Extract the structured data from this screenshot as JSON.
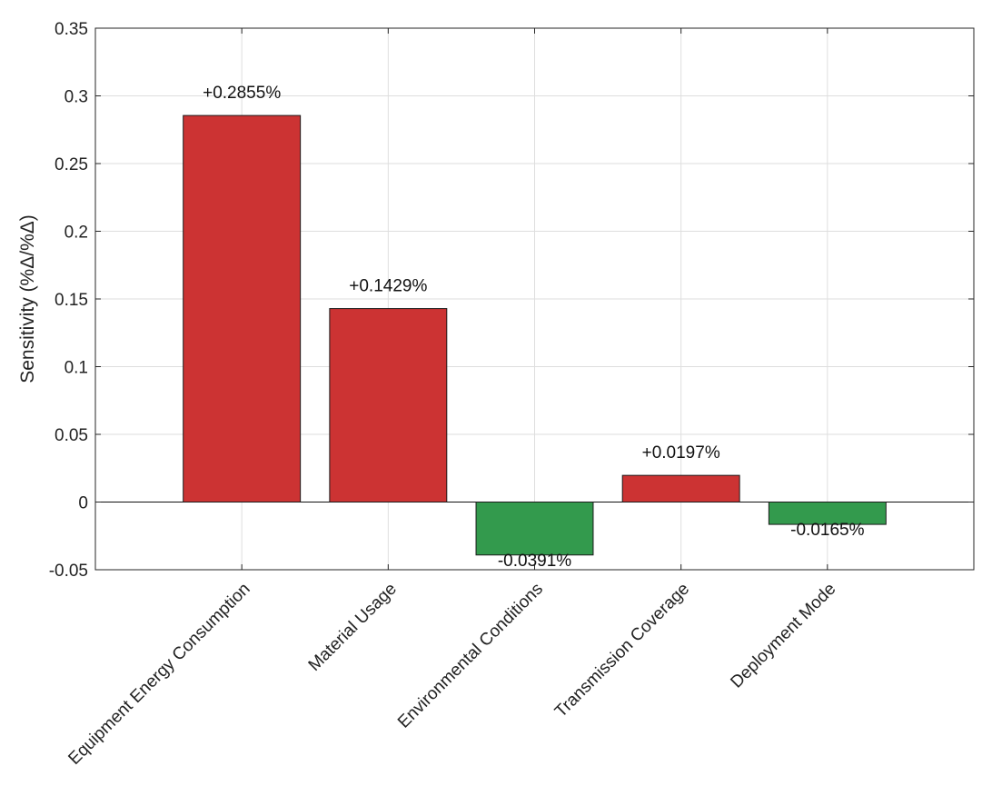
{
  "chart_data": {
    "type": "bar",
    "title": "",
    "xlabel": "",
    "ylabel": "Sensitivity (%Δ/%Δ)",
    "categories": [
      "Equipment Energy Consumption",
      "Material Usage",
      "Environmental Conditions",
      "Transmission Coverage",
      "Deployment Mode"
    ],
    "values": [
      0.2855,
      0.1429,
      -0.0391,
      0.0197,
      -0.0165
    ],
    "data_labels": [
      "+0.2855%",
      "+0.1429%",
      "-0.0391%",
      "+0.0197%",
      "-0.0165%"
    ],
    "ylim": [
      -0.05,
      0.35
    ],
    "yticks": [
      -0.05,
      0,
      0.05,
      0.1,
      0.15,
      0.2,
      0.25,
      0.3,
      0.35
    ],
    "ytick_labels": [
      "-0.05",
      "0",
      "0.05",
      "0.1",
      "0.15",
      "0.2",
      "0.25",
      "0.3",
      "0.35"
    ],
    "grid": true,
    "legend": "none",
    "colors": {
      "positive": "#cc3333",
      "negative": "#339a4d",
      "edge": "#1a1a1a",
      "grid": "#dedede",
      "axis": "#262626"
    }
  }
}
